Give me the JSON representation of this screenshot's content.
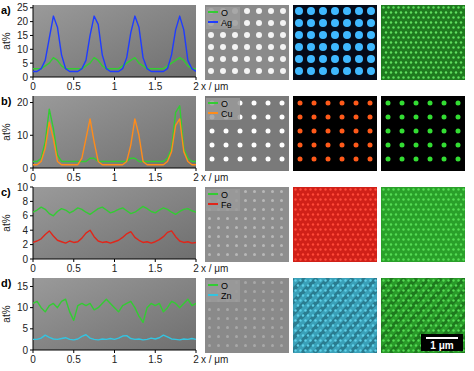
{
  "chart_data": [
    {
      "type": "line",
      "title": "a)",
      "x_label": "x / μm",
      "y_label": "at%",
      "x": [
        0,
        0.05,
        0.1,
        0.15,
        0.2,
        0.25,
        0.3,
        0.35,
        0.4,
        0.45,
        0.5,
        0.55,
        0.6,
        0.65,
        0.7,
        0.75,
        0.8,
        0.85,
        0.9,
        0.95,
        1,
        1.05,
        1.1,
        1.15,
        1.2,
        1.25,
        1.3,
        1.35,
        1.4,
        1.45,
        1.5,
        1.55,
        1.6,
        1.65,
        1.7,
        1.75,
        1.8,
        1.85,
        1.9,
        1.95,
        2
      ],
      "series": [
        {
          "name": "O",
          "color": "#33cc33",
          "values": [
            3,
            3,
            3,
            4,
            5,
            7,
            6,
            4,
            3,
            3,
            3,
            3,
            3,
            4,
            5,
            7,
            6,
            4,
            3,
            3,
            3,
            3,
            4,
            5,
            6,
            7,
            5,
            4,
            3,
            3,
            3,
            3,
            3,
            4,
            5,
            6,
            7,
            6,
            4,
            3,
            3
          ]
        },
        {
          "name": "Ag",
          "color": "#1f3cff",
          "values": [
            2,
            2,
            3,
            6,
            14,
            22,
            18,
            8,
            3,
            2,
            2,
            2,
            3,
            6,
            15,
            22,
            19,
            8,
            3,
            2,
            2,
            2,
            3,
            7,
            16,
            22,
            18,
            7,
            3,
            2,
            2,
            2,
            2,
            3,
            8,
            17,
            22,
            17,
            6,
            3,
            2
          ]
        }
      ],
      "xlim": [
        0,
        2
      ],
      "ylim": [
        0,
        26
      ],
      "xticks": [
        0,
        0.5,
        1,
        1.5,
        2
      ],
      "yticks": [
        0,
        5,
        10,
        15,
        20,
        25
      ],
      "legend": "right"
    },
    {
      "type": "line",
      "title": "b)",
      "x_label": "x / μm",
      "y_label": "at%",
      "x": [
        0,
        0.05,
        0.1,
        0.15,
        0.2,
        0.25,
        0.3,
        0.35,
        0.4,
        0.45,
        0.5,
        0.55,
        0.6,
        0.65,
        0.7,
        0.75,
        0.8,
        0.85,
        0.9,
        0.95,
        1,
        1.05,
        1.1,
        1.15,
        1.2,
        1.25,
        1.3,
        1.35,
        1.4,
        1.45,
        1.5,
        1.55,
        1.6,
        1.65,
        1.7,
        1.75,
        1.8,
        1.85,
        1.9,
        1.95,
        2
      ],
      "series": [
        {
          "name": "O",
          "color": "#33cc33",
          "values": [
            2,
            2,
            3,
            8,
            18,
            12,
            4,
            2,
            2,
            2,
            2,
            2,
            2,
            2,
            3,
            3,
            2,
            2,
            2,
            2,
            2,
            2,
            2,
            2,
            3,
            3,
            2,
            2,
            2,
            2,
            2,
            2,
            2,
            3,
            6,
            17,
            19,
            6,
            3,
            2,
            2
          ]
        },
        {
          "name": "Cu",
          "color": "#ff8c1a",
          "values": [
            1,
            1,
            2,
            6,
            14,
            9,
            2,
            1,
            1,
            1,
            1,
            1,
            3,
            9,
            15,
            8,
            2,
            1,
            1,
            1,
            1,
            1,
            1,
            2,
            7,
            15,
            10,
            2,
            1,
            1,
            1,
            1,
            1,
            2,
            5,
            13,
            15,
            5,
            2,
            1,
            1
          ]
        }
      ],
      "xlim": [
        0,
        2
      ],
      "ylim": [
        0,
        22
      ],
      "xticks": [
        0,
        0.5,
        1,
        1.5,
        2
      ],
      "yticks": [
        0,
        10,
        20
      ],
      "legend": "right"
    },
    {
      "type": "line",
      "title": "c)",
      "x_label": "x / μm",
      "y_label": "at%",
      "x": [
        0,
        0.05,
        0.1,
        0.15,
        0.2,
        0.25,
        0.3,
        0.35,
        0.4,
        0.45,
        0.5,
        0.55,
        0.6,
        0.65,
        0.7,
        0.75,
        0.8,
        0.85,
        0.9,
        0.95,
        1,
        1.05,
        1.1,
        1.15,
        1.2,
        1.25,
        1.3,
        1.35,
        1.4,
        1.45,
        1.5,
        1.55,
        1.6,
        1.65,
        1.7,
        1.75,
        1.8,
        1.85,
        1.9,
        1.95,
        2
      ],
      "series": [
        {
          "name": "O",
          "color": "#33cc33",
          "values": [
            6.5,
            6.8,
            7.2,
            6.9,
            6.3,
            6.0,
            6.6,
            7.0,
            6.8,
            6.4,
            6.7,
            7.1,
            6.9,
            6.5,
            6.2,
            6.6,
            7.0,
            7.2,
            6.8,
            6.4,
            6.6,
            6.9,
            7.1,
            6.7,
            6.3,
            6.5,
            6.9,
            7.3,
            7.0,
            6.6,
            6.4,
            6.8,
            7.1,
            6.9,
            6.5,
            6.2,
            6.6,
            6.9,
            7.0,
            6.7,
            6.5
          ]
        },
        {
          "name": "Fe",
          "color": "#e0261a",
          "values": [
            2.3,
            2.5,
            2.8,
            3.4,
            3.9,
            3.2,
            2.6,
            2.4,
            2.2,
            2.5,
            2.3,
            2.4,
            2.9,
            3.6,
            4.0,
            3.1,
            2.5,
            2.3,
            2.4,
            2.2,
            2.4,
            2.6,
            3.0,
            3.5,
            3.8,
            3.0,
            2.6,
            2.3,
            2.4,
            2.2,
            2.4,
            2.7,
            3.1,
            3.7,
            3.9,
            3.1,
            2.5,
            2.3,
            2.4,
            2.2,
            2.3
          ]
        }
      ],
      "xlim": [
        0,
        2
      ],
      "ylim": [
        0,
        10
      ],
      "xticks": [
        0,
        0.5,
        1,
        1.5,
        2
      ],
      "yticks": [
        0,
        2,
        4,
        6,
        8,
        10
      ],
      "legend": "right"
    },
    {
      "type": "line",
      "title": "d)",
      "x_label": "x / μm",
      "y_label": "at%",
      "x": [
        0,
        0.05,
        0.1,
        0.15,
        0.2,
        0.25,
        0.3,
        0.35,
        0.4,
        0.45,
        0.5,
        0.55,
        0.6,
        0.65,
        0.7,
        0.75,
        0.8,
        0.85,
        0.9,
        0.95,
        1,
        1.05,
        1.1,
        1.15,
        1.2,
        1.25,
        1.3,
        1.35,
        1.4,
        1.45,
        1.5,
        1.55,
        1.6,
        1.65,
        1.7,
        1.75,
        1.8,
        1.85,
        1.9,
        1.95,
        2
      ],
      "series": [
        {
          "name": "O",
          "color": "#33cc33",
          "values": [
            11,
            11.5,
            10,
            9,
            10.5,
            11,
            10,
            11.5,
            12,
            9,
            7,
            10.5,
            11,
            10.5,
            11,
            9.5,
            10,
            11,
            12,
            11,
            10,
            9,
            10.5,
            11,
            11.5,
            10,
            8,
            6.5,
            10,
            11,
            10.5,
            11,
            9,
            10,
            11.5,
            11,
            10,
            11,
            12,
            10.5,
            11
          ]
        },
        {
          "name": "Zn",
          "color": "#33c4e0",
          "values": [
            2.5,
            2.5,
            2.8,
            3.5,
            3,
            2.6,
            2.5,
            2.7,
            2.9,
            2.5,
            2.4,
            2.6,
            3.2,
            3.6,
            2.8,
            2.5,
            2.4,
            2.6,
            2.5,
            2.7,
            2.5,
            2.8,
            3.3,
            3.4,
            2.7,
            2.5,
            2.6,
            2.4,
            2.5,
            2.8,
            2.6,
            2.9,
            3.5,
            3.1,
            2.6,
            2.5,
            2.4,
            2.6,
            2.5,
            2.7,
            2.5
          ]
        }
      ],
      "xlim": [
        0,
        2
      ],
      "ylim": [
        0,
        17
      ],
      "xticks": [
        0,
        0.5,
        1,
        1.5,
        2
      ],
      "yticks": [
        0,
        5,
        10,
        15
      ],
      "legend": "right"
    }
  ],
  "scale_bar": {
    "label": "1 μm"
  }
}
